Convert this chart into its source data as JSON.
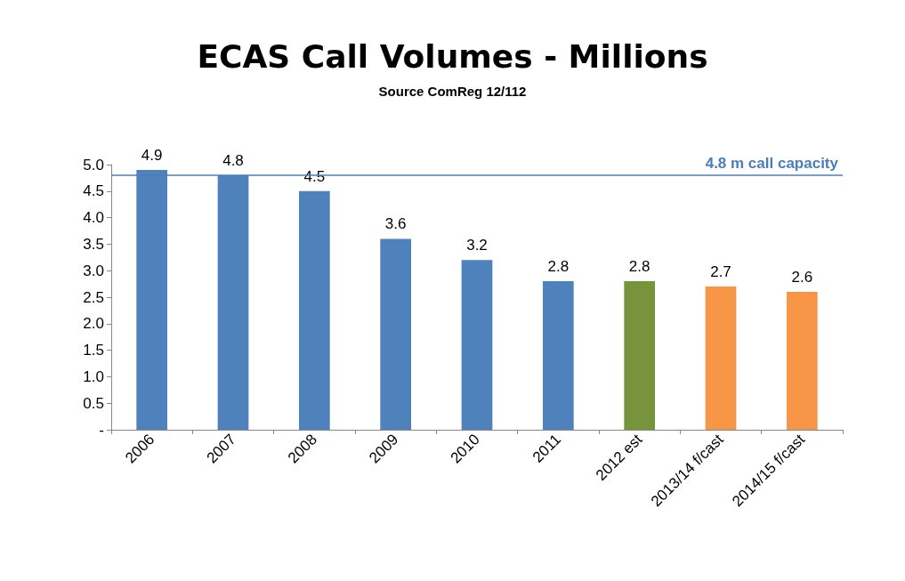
{
  "chart_data": {
    "type": "bar",
    "title": "ECAS Call Volumes - Millions",
    "subtitle": "Source ComReg 12/112",
    "categories": [
      "2006",
      "2007",
      "2008",
      "2009",
      "2010",
      "2011",
      "2012 est",
      "2013/14 f/cast",
      "2014/15 f/cast"
    ],
    "values": [
      4.9,
      4.8,
      4.5,
      3.6,
      3.2,
      2.8,
      2.8,
      2.7,
      2.6
    ],
    "colors": [
      "#4f81bd",
      "#4f81bd",
      "#4f81bd",
      "#4f81bd",
      "#4f81bd",
      "#4f81bd",
      "#77933c",
      "#f79646",
      "#f79646"
    ],
    "ylim": [
      0,
      5
    ],
    "yticks": [
      {
        "value": 0,
        "label": "-"
      },
      {
        "value": 0.5,
        "label": "0.5"
      },
      {
        "value": 1,
        "label": "1.0"
      },
      {
        "value": 1.5,
        "label": "1.5"
      },
      {
        "value": 2,
        "label": "2.0"
      },
      {
        "value": 2.5,
        "label": "2.5"
      },
      {
        "value": 3,
        "label": "3.0"
      },
      {
        "value": 3.5,
        "label": "3.5"
      },
      {
        "value": 4,
        "label": "4.0"
      },
      {
        "value": 4.5,
        "label": "4.5"
      },
      {
        "value": 5,
        "label": "5.0"
      }
    ],
    "ref_lines": [
      {
        "axis": "y",
        "value": 4.8,
        "label": "4.8 m call capacity",
        "color": "#4a7ebb"
      }
    ],
    "data_labels": true,
    "grid": false
  }
}
